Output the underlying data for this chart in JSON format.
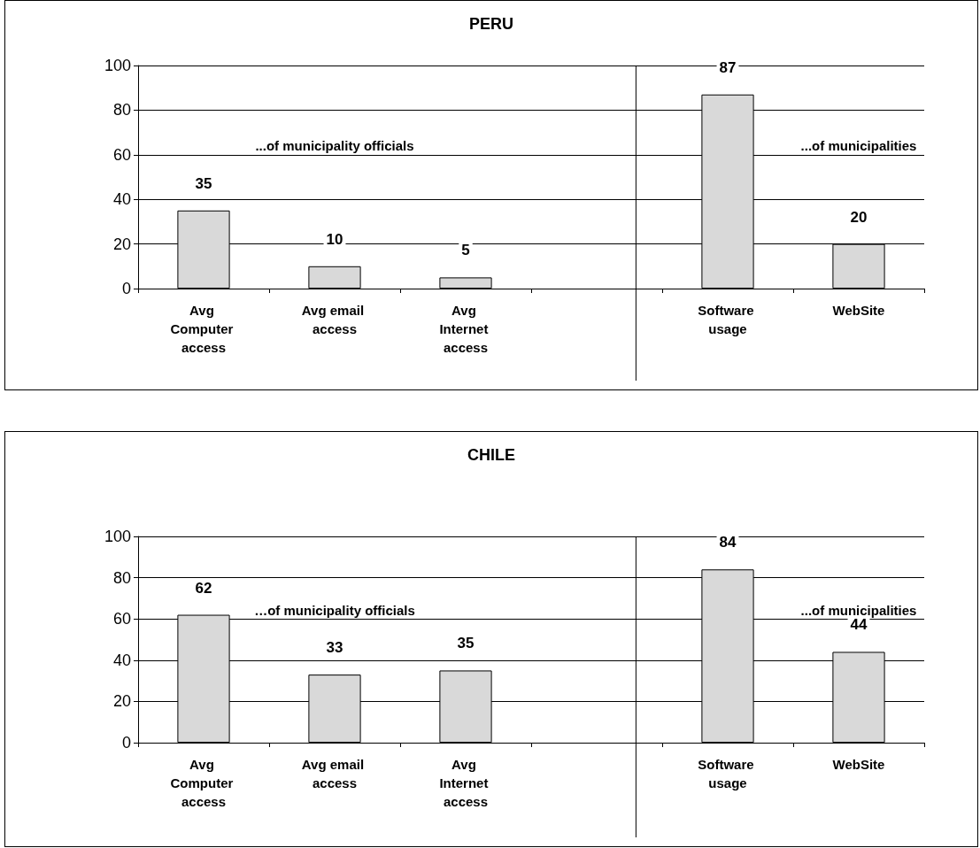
{
  "chart_data": [
    {
      "type": "bar",
      "title": "PERU",
      "categories": [
        "Avg Computer access",
        "Avg email access",
        "Avg Internet access",
        null,
        "Software usage",
        "WebSite"
      ],
      "values": [
        35,
        10,
        5,
        null,
        87,
        20
      ],
      "color": "#d9d9d9",
      "ylim": [
        0,
        100
      ],
      "yticks": [
        0,
        20,
        40,
        60,
        80,
        100
      ],
      "grid": "y",
      "data_labels": true,
      "annotations": [
        "...of municipality officials",
        "...of municipalities"
      ]
    },
    {
      "type": "bar",
      "title": "CHILE",
      "categories": [
        "Avg Computer access",
        "Avg email access",
        "Avg Internet access",
        null,
        "Software usage",
        "WebSite"
      ],
      "values": [
        62,
        33,
        35,
        null,
        84,
        44
      ],
      "color": "#d9d9d9",
      "ylim": [
        0,
        100
      ],
      "yticks": [
        0,
        20,
        40,
        60,
        80,
        100
      ],
      "grid": "y",
      "data_labels": true,
      "annotations": [
        "…of municipality officials",
        "...of municipalities"
      ]
    }
  ]
}
